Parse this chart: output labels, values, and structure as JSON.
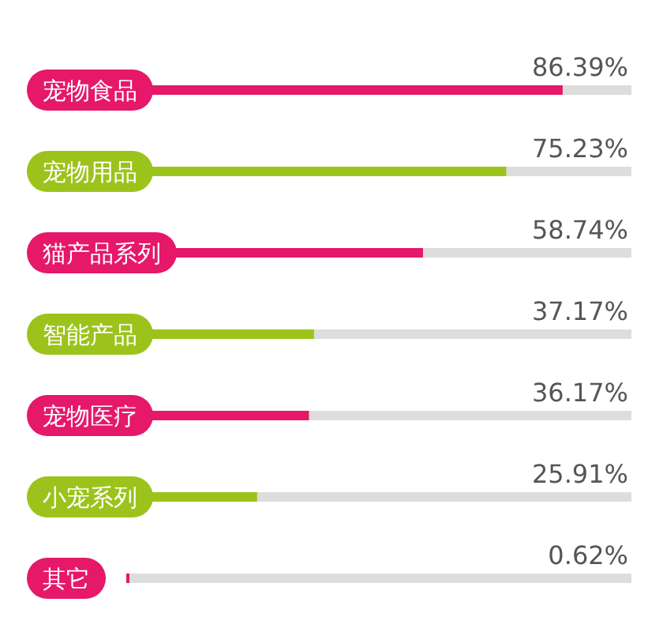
{
  "chart_data": {
    "type": "bar",
    "orientation": "horizontal",
    "categories": [
      "宠物食品",
      "宠物用品",
      "猫产品系列",
      "智能产品",
      "宠物医疗",
      "小宠系列",
      "其它"
    ],
    "values": [
      86.39,
      75.23,
      58.74,
      37.17,
      36.17,
      25.91,
      0.62
    ],
    "colors": [
      "#e5186a",
      "#9cc31b",
      "#e5186a",
      "#9cc31b",
      "#e5186a",
      "#9cc31b",
      "#e5186a"
    ],
    "value_labels": [
      "86.39%",
      "75.23%",
      "58.74%",
      "37.17%",
      "36.17%",
      "25.91%",
      "0.62%"
    ],
    "xlim": [
      0,
      100
    ]
  }
}
